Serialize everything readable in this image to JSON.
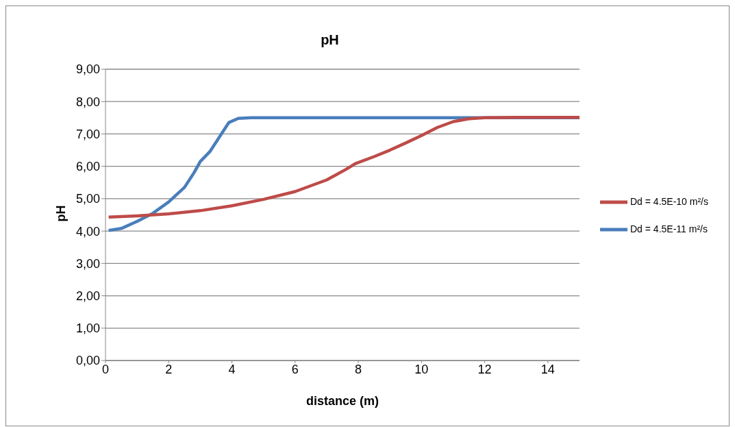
{
  "chart_data": {
    "type": "line",
    "title": "pH",
    "xlabel": "distance (m)",
    "ylabel": "pH",
    "xlim": [
      0,
      15
    ],
    "xticks": [
      0,
      2,
      4,
      6,
      8,
      10,
      12,
      14
    ],
    "ylim": [
      0,
      9
    ],
    "yticks": [
      {
        "value": 0,
        "label": "0,00"
      },
      {
        "value": 1,
        "label": "1,00"
      },
      {
        "value": 2,
        "label": "2,00"
      },
      {
        "value": 3,
        "label": "3,00"
      },
      {
        "value": 4,
        "label": "4,00"
      },
      {
        "value": 5,
        "label": "5,00"
      },
      {
        "value": 6,
        "label": "6,00"
      },
      {
        "value": 7,
        "label": "7,00"
      },
      {
        "value": 8,
        "label": "8,00"
      },
      {
        "value": 9,
        "label": "9,00"
      }
    ],
    "grid": "y",
    "legend": "right",
    "marker": "none",
    "line_style": "solid",
    "series": [
      {
        "name": "Dd = 4.5E-11 m²/s",
        "color": "#4a7ebb",
        "x": [
          0.1,
          0.5,
          1,
          1.5,
          2,
          2.5,
          2.8,
          3,
          3.3,
          3.6,
          3.9,
          4.2,
          4.6,
          15
        ],
        "values": [
          4.02,
          4.08,
          4.3,
          4.55,
          4.9,
          5.35,
          5.8,
          6.15,
          6.45,
          6.9,
          7.35,
          7.48,
          7.5,
          7.5
        ]
      },
      {
        "name": "Dd = 4.5E-10 m²/s",
        "color": "#be4b48",
        "x": [
          0.1,
          1,
          2,
          3,
          4,
          5,
          6,
          7,
          7.6,
          7.9,
          8.5,
          9,
          9.5,
          10,
          10.5,
          11,
          11.5,
          12,
          13,
          15
        ],
        "values": [
          4.43,
          4.47,
          4.53,
          4.63,
          4.78,
          4.98,
          5.22,
          5.58,
          5.9,
          6.08,
          6.3,
          6.5,
          6.72,
          6.95,
          7.2,
          7.38,
          7.47,
          7.5,
          7.51,
          7.51
        ]
      }
    ]
  }
}
